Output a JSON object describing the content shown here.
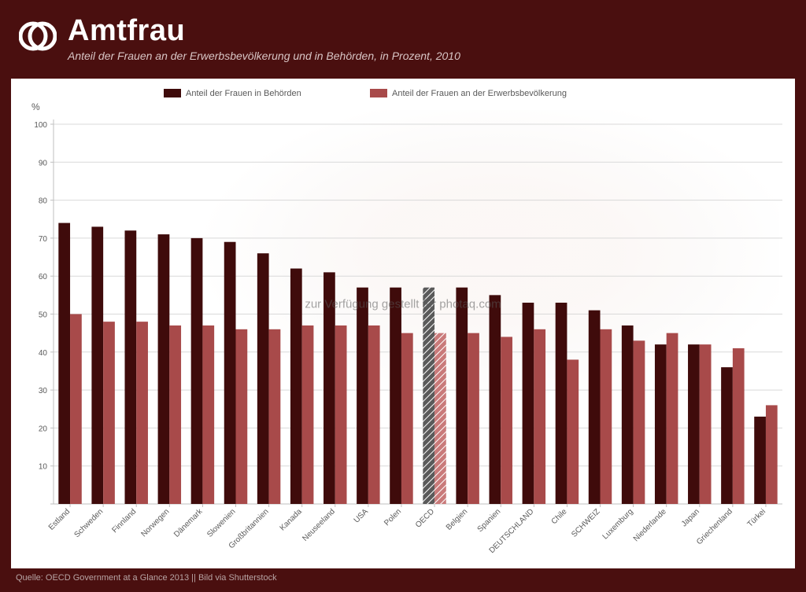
{
  "header": {
    "title": "Amtfrau",
    "subtitle": "Anteil der Frauen an der Erwerbsbevölkerung und in Behörden, in Prozent, 2010"
  },
  "watermark": "zur Verfügung gestellt für photaq.com",
  "footer": "Quelle: OECD Government at a Glance 2013 || Bild via Shutterstock",
  "chart": {
    "type": "bar",
    "y_axis_label": "%",
    "ylim": [
      0,
      100
    ],
    "ytick_step": 10,
    "yticks": [
      0,
      10,
      20,
      30,
      40,
      50,
      60,
      70,
      80,
      90,
      100
    ],
    "grid_color": "#d9d9d9",
    "axis_color": "#bfbfbf",
    "background_color": "#ffffff",
    "label_fontsize": 10,
    "tick_fontsize": 10,
    "category_label_rotation": -45,
    "bar_group_gap": 0.3,
    "bar_width": 0.35,
    "legend": {
      "position": "top",
      "fontsize": 11,
      "items": [
        {
          "label": "Anteil der Frauen in Behörden",
          "color": "#3f0b0b",
          "hatched": false
        },
        {
          "label": "Anteil der Frauen an der Erwerbsbevölkerung",
          "color": "#a84a4a",
          "hatched": false
        }
      ]
    },
    "series": [
      {
        "key": "behoerden",
        "color": "#3f0b0b"
      },
      {
        "key": "erwerb",
        "color": "#a84a4a"
      }
    ],
    "oecd_hatch": {
      "behoerden_color": "#5a5a5a",
      "erwerb_color": "#c97a7a",
      "stroke": "#ffffff"
    },
    "categories": [
      {
        "label": "Estland",
        "behoerden": 74,
        "erwerb": 50,
        "hatched": false
      },
      {
        "label": "Schweden",
        "behoerden": 73,
        "erwerb": 48,
        "hatched": false
      },
      {
        "label": "Finnland",
        "behoerden": 72,
        "erwerb": 48,
        "hatched": false
      },
      {
        "label": "Norwegen",
        "behoerden": 71,
        "erwerb": 47,
        "hatched": false
      },
      {
        "label": "Dänemark",
        "behoerden": 70,
        "erwerb": 47,
        "hatched": false
      },
      {
        "label": "Slowenien",
        "behoerden": 69,
        "erwerb": 46,
        "hatched": false
      },
      {
        "label": "Großbritannien",
        "behoerden": 66,
        "erwerb": 46,
        "hatched": false
      },
      {
        "label": "Kanada",
        "behoerden": 62,
        "erwerb": 47,
        "hatched": false
      },
      {
        "label": "Neuseeland",
        "behoerden": 61,
        "erwerb": 47,
        "hatched": false
      },
      {
        "label": "USA",
        "behoerden": 57,
        "erwerb": 47,
        "hatched": false
      },
      {
        "label": "Polen",
        "behoerden": 57,
        "erwerb": 45,
        "hatched": false
      },
      {
        "label": "OECD",
        "behoerden": 57,
        "erwerb": 45,
        "hatched": true
      },
      {
        "label": "Belgien",
        "behoerden": 57,
        "erwerb": 45,
        "hatched": false
      },
      {
        "label": "Spanien",
        "behoerden": 55,
        "erwerb": 44,
        "hatched": false
      },
      {
        "label": "DEUTSCHLAND",
        "behoerden": 53,
        "erwerb": 46,
        "hatched": false
      },
      {
        "label": "Chile",
        "behoerden": 53,
        "erwerb": 38,
        "hatched": false
      },
      {
        "label": "SCHWEIZ",
        "behoerden": 51,
        "erwerb": 46,
        "hatched": false
      },
      {
        "label": "Luxemburg",
        "behoerden": 47,
        "erwerb": 43,
        "hatched": false
      },
      {
        "label": "Niederlande",
        "behoerden": 42,
        "erwerb": 45,
        "hatched": false
      },
      {
        "label": "Japan",
        "behoerden": 42,
        "erwerb": 42,
        "hatched": false
      },
      {
        "label": "Griechenland",
        "behoerden": 36,
        "erwerb": 41,
        "hatched": false
      },
      {
        "label": "Türkei",
        "behoerden": 23,
        "erwerb": 26,
        "hatched": false
      }
    ]
  }
}
